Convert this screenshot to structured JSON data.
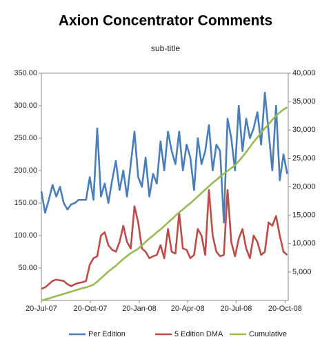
{
  "chart_data": {
    "type": "line",
    "title": "Axion Concentrator Comments",
    "subtitle": "sub-title",
    "x": [
      "2007-07-20",
      "2007-07-27",
      "2007-08-03",
      "2007-08-10",
      "2007-08-17",
      "2007-08-24",
      "2007-08-31",
      "2007-09-07",
      "2007-09-14",
      "2007-09-21",
      "2007-09-28",
      "2007-10-05",
      "2007-10-12",
      "2007-10-19",
      "2007-10-26",
      "2007-11-02",
      "2007-11-09",
      "2007-11-16",
      "2007-11-23",
      "2007-11-30",
      "2007-12-07",
      "2007-12-14",
      "2007-12-21",
      "2007-12-28",
      "2008-01-04",
      "2008-01-11",
      "2008-01-18",
      "2008-01-25",
      "2008-02-01",
      "2008-02-08",
      "2008-02-15",
      "2008-02-22",
      "2008-02-29",
      "2008-03-07",
      "2008-03-14",
      "2008-03-21",
      "2008-03-28",
      "2008-04-04",
      "2008-04-11",
      "2008-04-18",
      "2008-04-25",
      "2008-05-02",
      "2008-05-09",
      "2008-05-16",
      "2008-05-23",
      "2008-05-30",
      "2008-06-06",
      "2008-06-13",
      "2008-06-20",
      "2008-06-27",
      "2008-07-04",
      "2008-07-11",
      "2008-07-18",
      "2008-07-25",
      "2008-08-01",
      "2008-08-08",
      "2008-08-15",
      "2008-08-22",
      "2008-08-29",
      "2008-09-05",
      "2008-09-12",
      "2008-09-19",
      "2008-09-26",
      "2008-10-03",
      "2008-10-10",
      "2008-10-17",
      "2008-10-24"
    ],
    "series": [
      {
        "name": "Per Edition",
        "color": "#4a7ebb",
        "values": [
          168,
          135,
          155,
          178,
          160,
          175,
          150,
          140,
          148,
          150,
          155,
          155,
          155,
          190,
          155,
          265,
          160,
          180,
          150,
          185,
          215,
          170,
          200,
          160,
          210,
          260,
          190,
          175,
          220,
          160,
          195,
          180,
          245,
          200,
          260,
          230,
          210,
          260,
          200,
          240,
          220,
          170,
          250,
          210,
          230,
          270,
          200,
          240,
          230,
          120,
          280,
          250,
          200,
          300,
          230,
          280,
          250,
          265,
          290,
          240,
          320,
          260,
          200,
          300,
          185,
          225,
          195
        ]
      },
      {
        "name": "5  Edition DMA",
        "color": "#be4b48",
        "values": [
          18,
          20,
          25,
          30,
          32,
          31,
          30,
          25,
          22,
          25,
          27,
          28,
          30,
          55,
          65,
          68,
          100,
          105,
          85,
          78,
          75,
          90,
          115,
          90,
          80,
          145,
          120,
          80,
          75,
          65,
          68,
          70,
          85,
          65,
          110,
          75,
          72,
          135,
          80,
          78,
          65,
          70,
          110,
          100,
          70,
          170,
          100,
          75,
          68,
          70,
          170,
          90,
          68,
          95,
          110,
          80,
          65,
          100,
          90,
          70,
          75,
          120,
          115,
          130,
          100,
          75,
          70
        ]
      },
      {
        "name": "Cumulative",
        "color": "#98b954",
        "axis": "y2",
        "values": [
          0,
          150,
          350,
          550,
          750,
          950,
          1150,
          1350,
          1550,
          1750,
          1950,
          2150,
          2300,
          2500,
          2800,
          3300,
          3900,
          4500,
          5100,
          5600,
          6100,
          6700,
          7300,
          7800,
          8300,
          8700,
          9100,
          9700,
          10300,
          10900,
          11400,
          12000,
          12500,
          13100,
          13700,
          14300,
          14900,
          15500,
          16000,
          16600,
          17100,
          17700,
          18300,
          18900,
          19500,
          20100,
          20700,
          21200,
          21800,
          22300,
          22800,
          23300,
          23800,
          24500,
          25300,
          26100,
          27000,
          27900,
          28700,
          29500,
          30300,
          31000,
          31800,
          32500,
          33100,
          33600,
          34000
        ]
      }
    ],
    "xlim": [
      "2007-07-20",
      "2008-10-26"
    ],
    "xticks": [
      {
        "value": "2007-07-20",
        "label": "20-Jul-07"
      },
      {
        "value": "2007-10-20",
        "label": "20-Oct-07"
      },
      {
        "value": "2008-01-20",
        "label": "20-Jan-08"
      },
      {
        "value": "2008-04-20",
        "label": "20-Apr-08"
      },
      {
        "value": "2008-07-20",
        "label": "20-Jul-08"
      },
      {
        "value": "2008-10-20",
        "label": "20-Oct-08"
      }
    ],
    "ylim": [
      0,
      350
    ],
    "yticks": [
      {
        "value": 50,
        "label": "50.00"
      },
      {
        "value": 100,
        "label": "100.00"
      },
      {
        "value": 150,
        "label": "150.00"
      },
      {
        "value": 200,
        "label": "200.00"
      },
      {
        "value": 250,
        "label": "250.00"
      },
      {
        "value": 300,
        "label": "300.00"
      },
      {
        "value": 350,
        "label": "350.00"
      }
    ],
    "y2lim": [
      0,
      40000
    ],
    "y2ticks": [
      {
        "value": 5000,
        "label": "5,000"
      },
      {
        "value": 10000,
        "label": "10,000"
      },
      {
        "value": 15000,
        "label": "15,000"
      },
      {
        "value": 20000,
        "label": "20,000"
      },
      {
        "value": 25000,
        "label": "25,000"
      },
      {
        "value": 30000,
        "label": "30,000"
      },
      {
        "value": 35000,
        "label": "35,000"
      },
      {
        "value": 40000,
        "label": "40,000"
      }
    ],
    "legend": "bottom"
  }
}
